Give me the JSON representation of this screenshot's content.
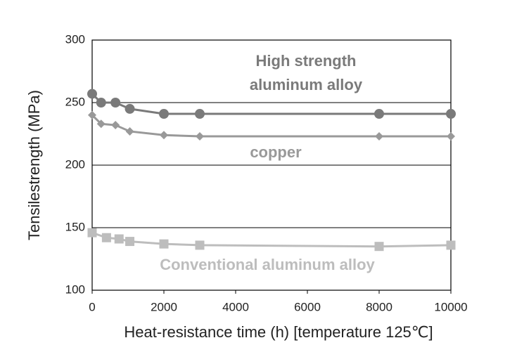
{
  "chart_data": {
    "type": "line",
    "xlabel": "Heat-resistance time (h) [temperature 125℃]",
    "ylabel": "Tensilestrength (MPa)",
    "xlim": [
      0,
      10000
    ],
    "xticks": [
      0,
      2000,
      4000,
      6000,
      8000,
      10000
    ],
    "ylim": [
      100,
      300
    ],
    "yticks": [
      100,
      150,
      200,
      250,
      300
    ],
    "grid": true,
    "series": [
      {
        "name": "High strength aluminum alloy",
        "color": "#7a7a7a",
        "marker": "circle",
        "x": [
          0,
          250,
          650,
          1050,
          2000,
          3000,
          8000,
          10000
        ],
        "values": [
          257,
          250,
          250,
          245,
          241,
          241,
          241,
          241
        ]
      },
      {
        "name": "copper",
        "color": "#999999",
        "marker": "diamond",
        "x": [
          0,
          250,
          650,
          1050,
          2000,
          3000,
          8000,
          10000
        ],
        "values": [
          240,
          233,
          232,
          227,
          224,
          223,
          223,
          223
        ]
      },
      {
        "name": "Conventional aluminum alloy",
        "color": "#bdbdbd",
        "marker": "square",
        "x": [
          0,
          400,
          750,
          1050,
          2000,
          3000,
          8000,
          10000
        ],
        "values": [
          146,
          142,
          141,
          139,
          137,
          136,
          135,
          136
        ]
      }
    ]
  }
}
